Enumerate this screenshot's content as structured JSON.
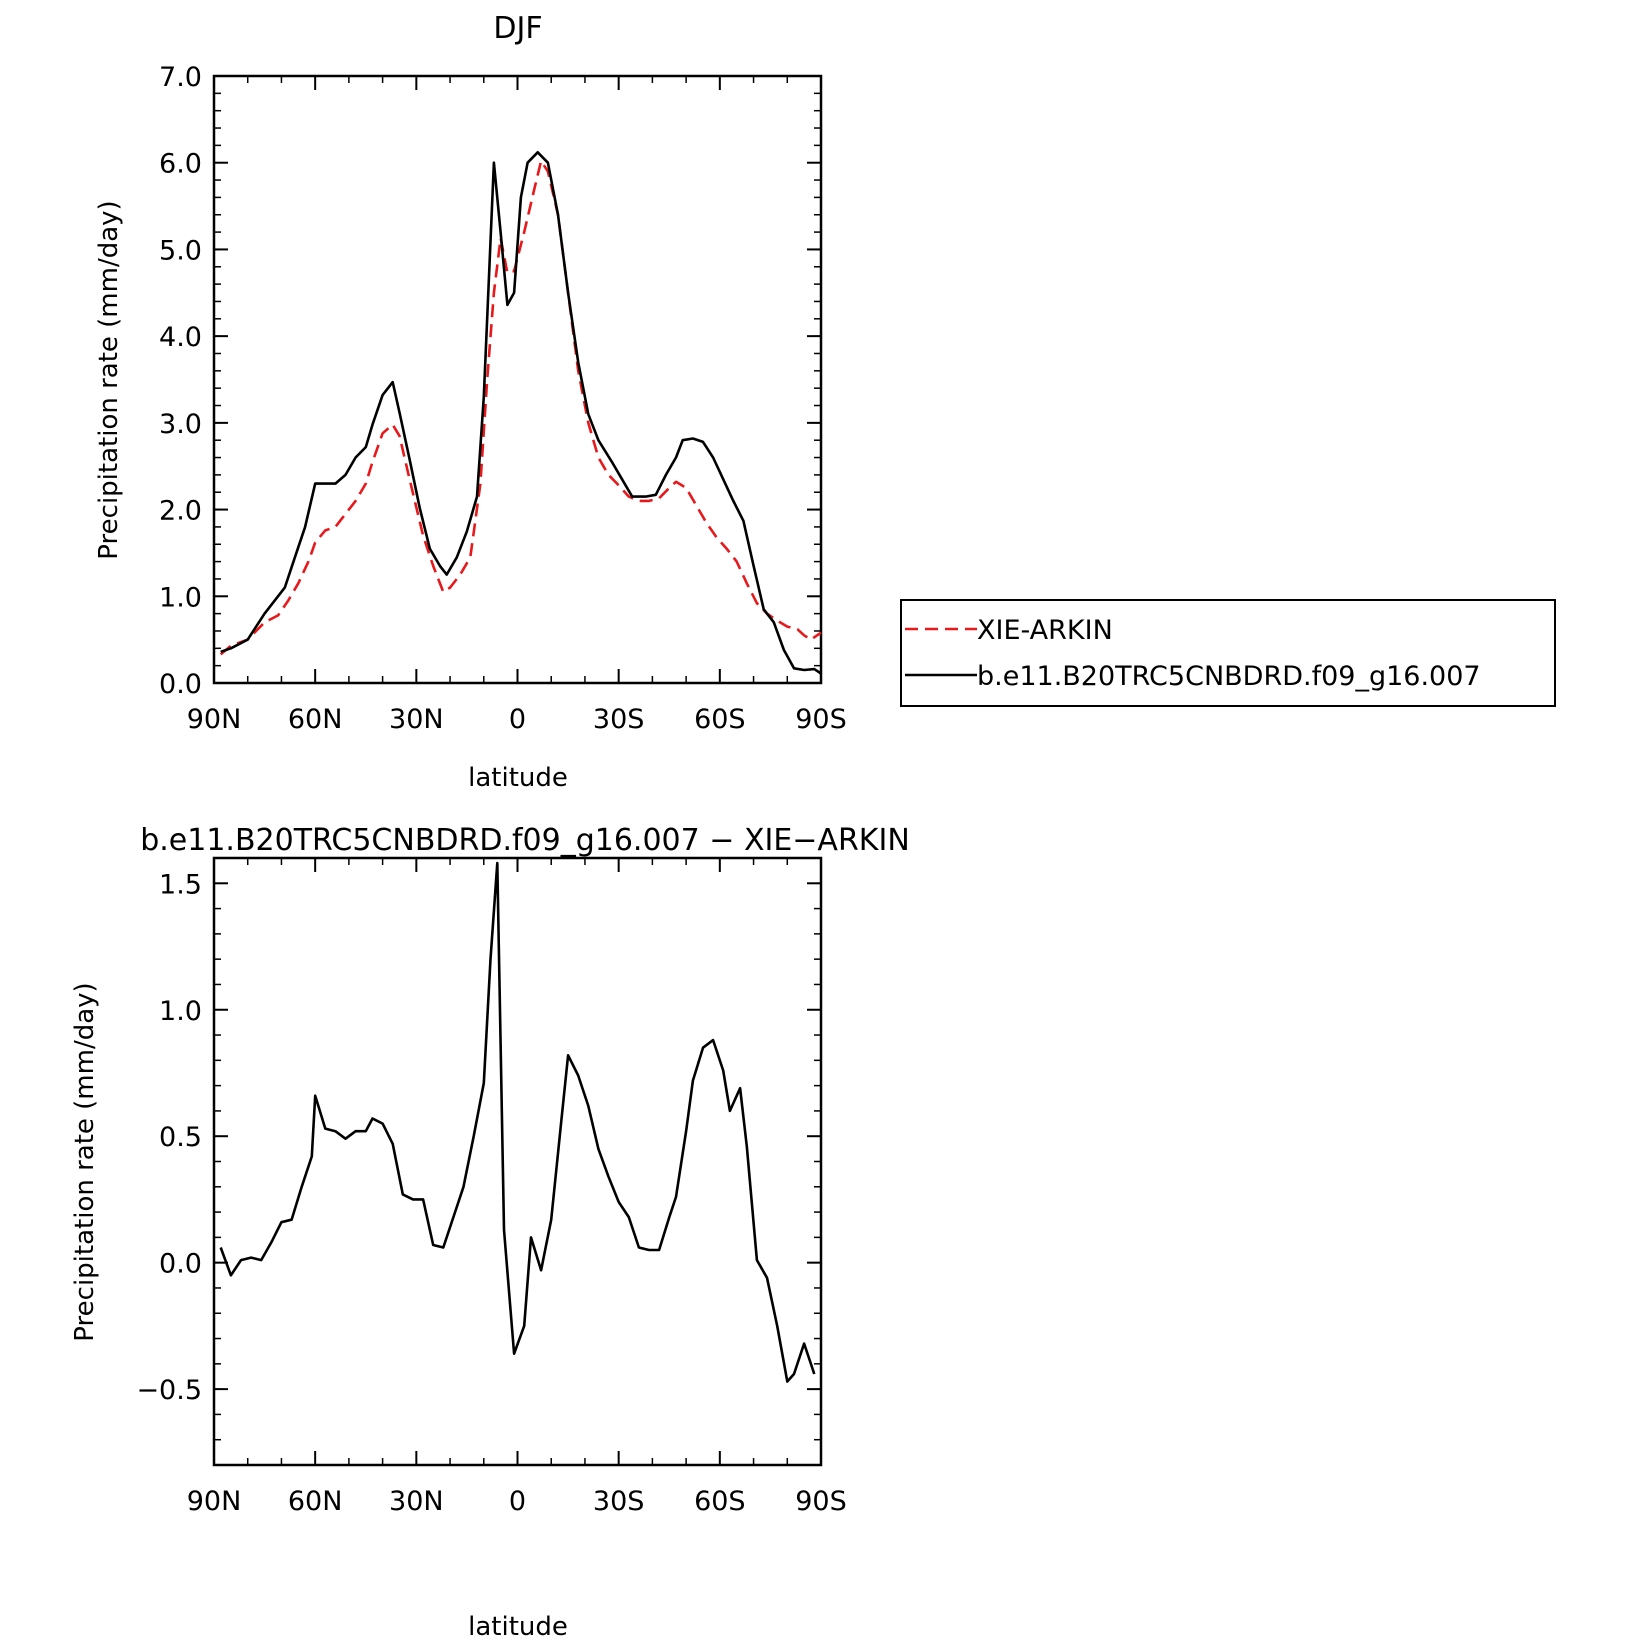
{
  "chart_data": [
    {
      "type": "line",
      "title": "DJF",
      "xlabel": "latitude",
      "ylabel": "Precipitation rate (mm/day)",
      "xlim": [
        -90,
        90
      ],
      "ylim": [
        0,
        7
      ],
      "xticks": [
        -90,
        -60,
        -30,
        0,
        30,
        60,
        90
      ],
      "xtick_labels": [
        "90N",
        "60N",
        "30N",
        "0",
        "30S",
        "60S",
        "90S"
      ],
      "yticks": [
        0,
        1,
        2,
        3,
        4,
        5,
        6,
        7
      ],
      "ytick_labels": [
        "0.0",
        "1.0",
        "2.0",
        "3.0",
        "4.0",
        "5.0",
        "6.0",
        "7.0"
      ],
      "legend_position": "right",
      "series": [
        {
          "name": "XIE-ARKIN",
          "color": "#e8191c",
          "dash": "dashed",
          "points": [
            [
              -88,
              0.33
            ],
            [
              -85,
              0.43
            ],
            [
              -80,
              0.5
            ],
            [
              -75,
              0.7
            ],
            [
              -71,
              0.78
            ],
            [
              -68,
              0.95
            ],
            [
              -65,
              1.15
            ],
            [
              -62,
              1.4
            ],
            [
              -60,
              1.62
            ],
            [
              -57,
              1.76
            ],
            [
              -54,
              1.8
            ],
            [
              -51,
              1.95
            ],
            [
              -48,
              2.1
            ],
            [
              -45,
              2.3
            ],
            [
              -43,
              2.55
            ],
            [
              -40,
              2.88
            ],
            [
              -37,
              2.98
            ],
            [
              -35,
              2.85
            ],
            [
              -32,
              2.35
            ],
            [
              -28,
              1.7
            ],
            [
              -25,
              1.35
            ],
            [
              -22,
              1.05
            ],
            [
              -20,
              1.1
            ],
            [
              -17,
              1.25
            ],
            [
              -14,
              1.45
            ],
            [
              -11,
              2.3
            ],
            [
              -9,
              3.5
            ],
            [
              -7,
              4.5
            ],
            [
              -5,
              5.13
            ],
            [
              -3,
              4.73
            ],
            [
              -1,
              4.75
            ],
            [
              2,
              5.2
            ],
            [
              5,
              5.7
            ],
            [
              7,
              6.02
            ],
            [
              9,
              5.9
            ],
            [
              12,
              5.4
            ],
            [
              15,
              4.5
            ],
            [
              18,
              3.6
            ],
            [
              21,
              3.0
            ],
            [
              24,
              2.6
            ],
            [
              27,
              2.4
            ],
            [
              30,
              2.28
            ],
            [
              33,
              2.15
            ],
            [
              36,
              2.1
            ],
            [
              39,
              2.1
            ],
            [
              42,
              2.13
            ],
            [
              45,
              2.25
            ],
            [
              47,
              2.32
            ],
            [
              50,
              2.25
            ],
            [
              53,
              2.05
            ],
            [
              56,
              1.85
            ],
            [
              59,
              1.68
            ],
            [
              62,
              1.55
            ],
            [
              65,
              1.4
            ],
            [
              68,
              1.15
            ],
            [
              71,
              0.92
            ],
            [
              74,
              0.8
            ],
            [
              77,
              0.72
            ],
            [
              80,
              0.65
            ],
            [
              83,
              0.62
            ],
            [
              85,
              0.55
            ],
            [
              87,
              0.5
            ],
            [
              90,
              0.58
            ]
          ]
        },
        {
          "name": "b.e11.B20TRC5CNBDRD.f09_g16.007",
          "color": "#000000",
          "dash": "solid",
          "points": [
            [
              -88,
              0.36
            ],
            [
              -85,
              0.4
            ],
            [
              -80,
              0.5
            ],
            [
              -75,
              0.8
            ],
            [
              -72,
              0.95
            ],
            [
              -69,
              1.1
            ],
            [
              -66,
              1.45
            ],
            [
              -63,
              1.8
            ],
            [
              -60,
              2.3
            ],
            [
              -57,
              2.3
            ],
            [
              -54,
              2.3
            ],
            [
              -51,
              2.4
            ],
            [
              -48,
              2.6
            ],
            [
              -45,
              2.72
            ],
            [
              -43,
              2.98
            ],
            [
              -40,
              3.32
            ],
            [
              -37,
              3.47
            ],
            [
              -35,
              3.12
            ],
            [
              -32,
              2.58
            ],
            [
              -29,
              2.02
            ],
            [
              -26,
              1.55
            ],
            [
              -23,
              1.35
            ],
            [
              -21,
              1.25
            ],
            [
              -18,
              1.45
            ],
            [
              -15,
              1.75
            ],
            [
              -12,
              2.15
            ],
            [
              -10,
              3.3
            ],
            [
              -7,
              6.0
            ],
            [
              -5,
              5.2
            ],
            [
              -3,
              4.36
            ],
            [
              -1,
              4.5
            ],
            [
              1,
              5.6
            ],
            [
              3,
              6.0
            ],
            [
              6,
              6.12
            ],
            [
              9,
              6.0
            ],
            [
              12,
              5.4
            ],
            [
              15,
              4.5
            ],
            [
              18,
              3.7
            ],
            [
              21,
              3.1
            ],
            [
              24,
              2.8
            ],
            [
              28,
              2.55
            ],
            [
              31,
              2.35
            ],
            [
              34,
              2.15
            ],
            [
              38,
              2.15
            ],
            [
              41,
              2.17
            ],
            [
              44,
              2.4
            ],
            [
              47,
              2.6
            ],
            [
              49,
              2.8
            ],
            [
              52,
              2.82
            ],
            [
              55,
              2.78
            ],
            [
              58,
              2.6
            ],
            [
              61,
              2.35
            ],
            [
              64,
              2.1
            ],
            [
              67,
              1.87
            ],
            [
              70,
              1.35
            ],
            [
              73,
              0.85
            ],
            [
              76,
              0.7
            ],
            [
              79,
              0.38
            ],
            [
              82,
              0.17
            ],
            [
              85,
              0.15
            ],
            [
              88,
              0.16
            ],
            [
              90,
              0.11
            ]
          ]
        }
      ]
    },
    {
      "type": "line",
      "title": "b.e11.B20TRC5CNBDRD.f09_g16.007 − XIE−ARKIN",
      "xlabel": "latitude",
      "ylabel": "Precipitation rate (mm/day)",
      "xlim": [
        -90,
        90
      ],
      "ylim": [
        -0.8,
        1.6
      ],
      "xticks": [
        -90,
        -60,
        -30,
        0,
        30,
        60,
        90
      ],
      "xtick_labels": [
        "90N",
        "60N",
        "30N",
        "0",
        "30S",
        "60S",
        "90S"
      ],
      "yticks": [
        -0.5,
        0,
        0.5,
        1,
        1.5
      ],
      "ytick_labels": [
        "−0.5",
        "0.0",
        "0.5",
        "1.0",
        "1.5"
      ],
      "series": [
        {
          "color": "#000000",
          "dash": "solid",
          "points": [
            [
              -88,
              0.06
            ],
            [
              -85,
              -0.05
            ],
            [
              -82,
              0.01
            ],
            [
              -79,
              0.02
            ],
            [
              -76,
              0.01
            ],
            [
              -73,
              0.08
            ],
            [
              -70,
              0.16
            ],
            [
              -67,
              0.17
            ],
            [
              -64,
              0.3
            ],
            [
              -61,
              0.42
            ],
            [
              -60,
              0.66
            ],
            [
              -57,
              0.53
            ],
            [
              -54,
              0.52
            ],
            [
              -51,
              0.49
            ],
            [
              -48,
              0.52
            ],
            [
              -45,
              0.52
            ],
            [
              -43,
              0.57
            ],
            [
              -40,
              0.55
            ],
            [
              -37,
              0.47
            ],
            [
              -34,
              0.27
            ],
            [
              -31,
              0.25
            ],
            [
              -28,
              0.25
            ],
            [
              -25,
              0.07
            ],
            [
              -22,
              0.06
            ],
            [
              -19,
              0.18
            ],
            [
              -16,
              0.3
            ],
            [
              -13,
              0.5
            ],
            [
              -10,
              0.71
            ],
            [
              -8,
              1.2
            ],
            [
              -6,
              1.58
            ],
            [
              -4,
              0.13
            ],
            [
              -1,
              -0.36
            ],
            [
              2,
              -0.25
            ],
            [
              4,
              0.1
            ],
            [
              7,
              -0.03
            ],
            [
              10,
              0.17
            ],
            [
              13,
              0.56
            ],
            [
              15,
              0.82
            ],
            [
              18,
              0.74
            ],
            [
              21,
              0.62
            ],
            [
              24,
              0.45
            ],
            [
              27,
              0.34
            ],
            [
              30,
              0.24
            ],
            [
              33,
              0.18
            ],
            [
              36,
              0.06
            ],
            [
              39,
              0.05
            ],
            [
              42,
              0.05
            ],
            [
              45,
              0.18
            ],
            [
              47,
              0.26
            ],
            [
              50,
              0.52
            ],
            [
              52,
              0.72
            ],
            [
              55,
              0.85
            ],
            [
              58,
              0.88
            ],
            [
              61,
              0.76
            ],
            [
              63,
              0.6
            ],
            [
              66,
              0.69
            ],
            [
              68,
              0.46
            ],
            [
              71,
              0.01
            ],
            [
              74,
              -0.06
            ],
            [
              77,
              -0.25
            ],
            [
              80,
              -0.47
            ],
            [
              82,
              -0.44
            ],
            [
              85,
              -0.32
            ],
            [
              88,
              -0.44
            ]
          ]
        }
      ]
    }
  ]
}
